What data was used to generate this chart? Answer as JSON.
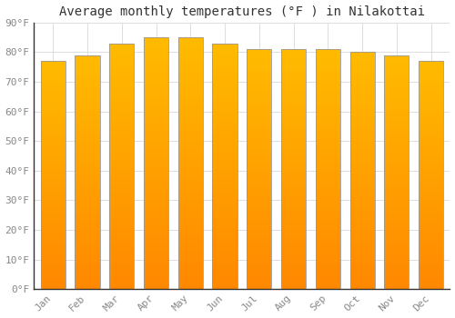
{
  "title": "Average monthly temperatures (°F ) in Nilakottai",
  "months": [
    "Jan",
    "Feb",
    "Mar",
    "Apr",
    "May",
    "Jun",
    "Jul",
    "Aug",
    "Sep",
    "Oct",
    "Nov",
    "Dec"
  ],
  "values": [
    77,
    79,
    83,
    85,
    85,
    83,
    81,
    81,
    81,
    80,
    79,
    77
  ],
  "ylim": [
    0,
    90
  ],
  "yticks": [
    0,
    10,
    20,
    30,
    40,
    50,
    60,
    70,
    80,
    90
  ],
  "ytick_labels": [
    "0°F",
    "10°F",
    "20°F",
    "30°F",
    "40°F",
    "50°F",
    "60°F",
    "70°F",
    "80°F",
    "90°F"
  ],
  "bar_color_top": "#FFBB00",
  "bar_color_bottom": "#FF8800",
  "background_color": "#FFFFFF",
  "plot_bg_color": "#FFFFFF",
  "grid_color": "#DDDDDD",
  "title_fontsize": 10,
  "tick_fontsize": 8,
  "title_color": "#333333",
  "tick_color": "#888888",
  "bar_edge_color": "#999999",
  "spine_color": "#333333"
}
